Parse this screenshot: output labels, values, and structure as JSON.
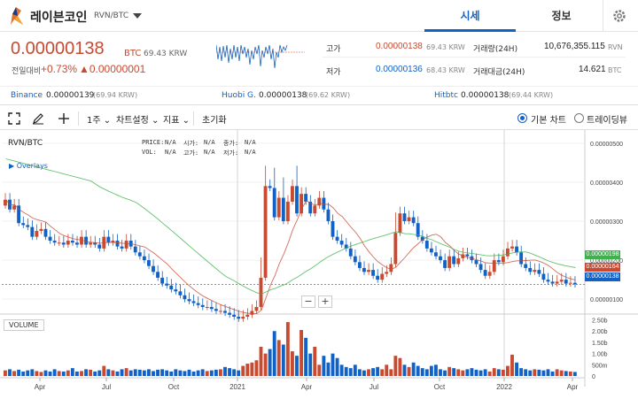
{
  "header": {
    "coin_name": "레이븐코인",
    "pair": "RVN/BTC",
    "tabs": [
      {
        "label": "시세"
      },
      {
        "label": "정보"
      }
    ]
  },
  "price": {
    "main": "0.00000138",
    "unit": "BTC",
    "krw": "69.43 KRW",
    "change_label": "전일대비",
    "change_pct": "+0.73%",
    "change_amt": "▲0.00000001",
    "up_color": "#c84a31",
    "down_color": "#1261c4"
  },
  "stats": {
    "high_label": "고가",
    "high_value": "0.00000138",
    "high_krw": "69.43 KRW",
    "low_label": "저가",
    "low_value": "0.00000136",
    "low_krw": "68.43 KRW",
    "volume_label": "거래량(24H)",
    "volume_value": "10,676,355.115",
    "volume_unit": "RVN",
    "amount_label": "거래대금(24H)",
    "amount_value": "14.621",
    "amount_unit": "BTC"
  },
  "exchanges": [
    {
      "name": "Binance",
      "value": "0.00000139",
      "krw": "(69.94 KRW)"
    },
    {
      "name": "Huobi G.",
      "value": "0.00000138",
      "krw": "(69.62 KRW)"
    },
    {
      "name": "Hitbtc",
      "value": "0.00000138",
      "krw": "(69.44 KRW)"
    }
  ],
  "toolbar": {
    "interval": "1주",
    "chart_settings": "차트설정",
    "indicators": "지표",
    "reset": "초기화",
    "basic_chart": "기본 차트",
    "trading_view": "트레이딩뷰"
  },
  "chart_data": {
    "type": "candlestick",
    "title": "RVN/BTC",
    "overlays_label": "Overlays",
    "legend": {
      "price": "PRICE:",
      "price_v": "N/A",
      "open": "시가:",
      "open_v": "N/A",
      "close": "종가:",
      "close_v": "N/A",
      "vol": "VOL:",
      "vol_v": "N/A",
      "high": "고가:",
      "high_v": "N/A",
      "low": "저가:",
      "low_v": "N/A"
    },
    "x_ticks": [
      "Apr",
      "Jul",
      "Oct",
      "2021",
      "Apr",
      "Jul",
      "Oct",
      "2022",
      "Apr"
    ],
    "y_ticks": [
      "0.00000500",
      "0.00000400",
      "0.00000300",
      "0.00000200",
      "0.00000100"
    ],
    "ylim": [
      8e-07,
      5.2e-06
    ],
    "volume_label": "VOLUME",
    "volume_ticks": [
      "2.50b",
      "2.00b",
      "1.50b",
      "1.00b",
      "500m",
      "0"
    ],
    "price_tags": [
      {
        "value": "0.00000198",
        "color": "#3cb44b"
      },
      {
        "value": "0.00000164",
        "color": "#c84a31"
      },
      {
        "value": "0.00000138",
        "color": "#1261c4"
      }
    ],
    "closes": [
      3.55,
      3.3,
      3.4,
      2.95,
      2.9,
      2.85,
      2.6,
      2.75,
      2.8,
      2.6,
      2.5,
      2.45,
      2.45,
      2.4,
      2.5,
      2.45,
      2.4,
      2.6,
      2.4,
      2.45,
      2.4,
      2.3,
      2.6,
      2.45,
      2.5,
      2.35,
      2.3,
      2.5,
      2.35,
      2.2,
      2.1,
      2.0,
      1.85,
      1.7,
      1.55,
      1.4,
      1.35,
      1.25,
      1.2,
      1.1,
      1.0,
      0.95,
      0.9,
      0.85,
      0.8,
      0.8,
      0.75,
      0.7,
      0.7,
      0.65,
      0.6,
      0.55,
      0.5,
      0.55,
      0.6,
      0.7,
      0.8,
      1.55,
      3.9,
      3.85,
      3.1,
      3.6,
      3.0,
      3.5,
      3.9,
      3.2,
      3.7,
      3.5,
      3.2,
      3.4,
      3.6,
      3.3,
      3.0,
      2.6,
      2.5,
      2.4,
      2.3,
      2.1,
      1.95,
      1.8,
      1.7,
      1.75,
      1.6,
      1.5,
      1.65,
      1.7,
      1.9,
      2.7,
      3.2,
      3.0,
      3.1,
      2.95,
      2.6,
      2.5,
      2.3,
      2.2,
      2.1,
      2.0,
      1.8,
      2.1,
      1.9,
      2.05,
      2.15,
      2.1,
      2.0,
      1.9,
      1.75,
      1.6,
      1.7,
      2.0,
      1.95,
      2.1,
      2.3,
      2.35,
      2.2,
      1.9,
      1.8,
      1.7,
      1.75,
      1.65,
      1.5,
      1.45,
      1.4,
      1.45,
      1.5,
      1.4,
      1.42,
      1.38
    ],
    "volumes": [
      0.25,
      0.3,
      0.22,
      0.28,
      0.2,
      0.25,
      0.3,
      0.22,
      0.18,
      0.25,
      0.2,
      0.3,
      0.22,
      0.2,
      0.25,
      0.35,
      0.2,
      0.22,
      0.3,
      0.28,
      0.2,
      0.25,
      0.45,
      0.3,
      0.25,
      0.2,
      0.3,
      0.35,
      0.25,
      0.3,
      0.28,
      0.25,
      0.3,
      0.22,
      0.28,
      0.3,
      0.25,
      0.2,
      0.3,
      0.25,
      0.22,
      0.28,
      0.2,
      0.25,
      0.3,
      0.22,
      0.25,
      0.28,
      0.3,
      0.4,
      0.35,
      0.3,
      0.25,
      0.45,
      0.55,
      0.6,
      0.7,
      1.3,
      1.0,
      1.2,
      2.0,
      1.6,
      1.4,
      2.4,
      1.1,
      0.9,
      2.05,
      1.7,
      1.0,
      1.3,
      0.5,
      0.9,
      0.6,
      1.0,
      0.8,
      0.5,
      0.4,
      0.35,
      0.5,
      0.3,
      0.25,
      0.3,
      0.35,
      0.4,
      0.3,
      0.5,
      0.3,
      0.9,
      0.8,
      0.5,
      0.4,
      0.6,
      0.45,
      0.35,
      0.3,
      0.45,
      0.5,
      0.3,
      0.25,
      0.4,
      0.35,
      0.3,
      0.25,
      0.3,
      0.35,
      0.28,
      0.25,
      0.3,
      0.2,
      0.35,
      0.3,
      0.28,
      0.45,
      0.95,
      0.6,
      0.35,
      0.3,
      0.25,
      0.3,
      0.28,
      0.25,
      0.3,
      0.2,
      0.3,
      0.25,
      0.22,
      0.2,
      0.18
    ]
  }
}
